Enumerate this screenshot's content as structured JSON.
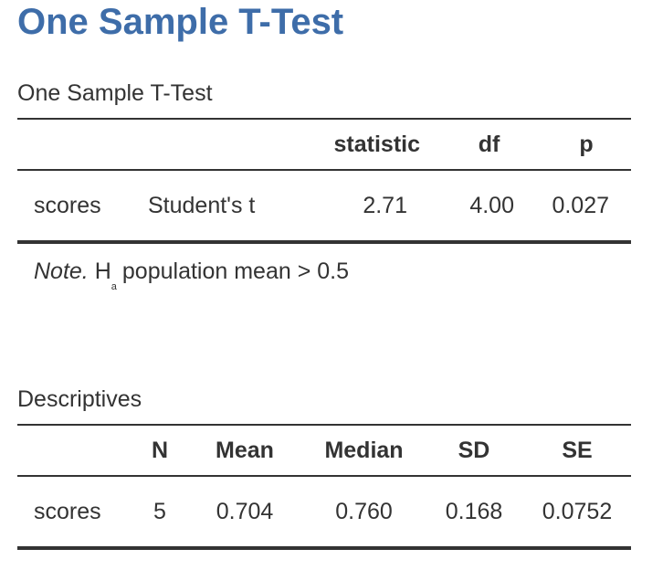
{
  "page": {
    "title": "One Sample T-Test"
  },
  "ttest": {
    "title": "One Sample T-Test",
    "headers": [
      "",
      "",
      "statistic",
      "df",
      "p"
    ],
    "rows": [
      {
        "variable": "scores",
        "test": "Student's t",
        "statistic": "2.71",
        "df": "4.00",
        "p": "0.027"
      }
    ],
    "note": {
      "label": "Note.",
      "symbol": "H",
      "subscript": "a",
      "text": "population mean > 0.5"
    }
  },
  "descriptives": {
    "title": "Descriptives",
    "headers": [
      "",
      "N",
      "Mean",
      "Median",
      "SD",
      "SE"
    ],
    "rows": [
      {
        "variable": "scores",
        "n": "5",
        "mean": "0.704",
        "median": "0.760",
        "sd": "0.168",
        "se": "0.0752"
      }
    ]
  }
}
